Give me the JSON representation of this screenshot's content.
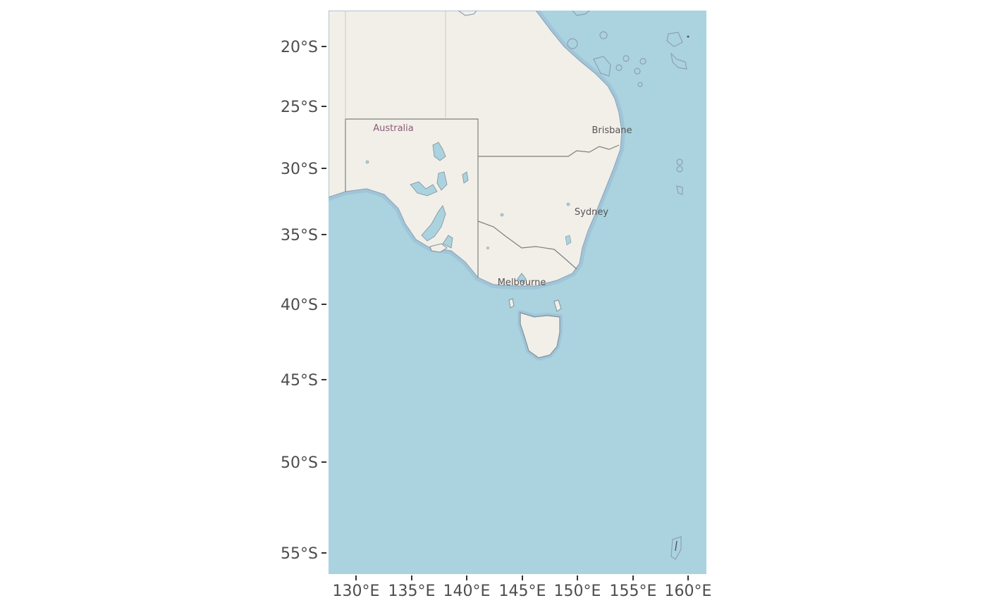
{
  "map": {
    "colors": {
      "ocean": "#aad3df",
      "land": "#f2efe9",
      "coast_halo": "#9fc2d6",
      "border": "#7f7f7f",
      "lake": "#aad3df",
      "tick": "#333333",
      "label": "#4d4d4d"
    },
    "lat_ticks": [
      "20°S",
      "25°S",
      "30°S",
      "35°S",
      "40°S",
      "45°S",
      "50°S",
      "55°S"
    ],
    "lon_ticks": [
      "130°E",
      "135°E",
      "140°E",
      "145°E",
      "150°E",
      "155°E",
      "160°E"
    ],
    "places": {
      "australia": "Australia",
      "brisbane": "Brisbane",
      "sydney": "Sydney",
      "melbourne": "Melbourne"
    }
  }
}
